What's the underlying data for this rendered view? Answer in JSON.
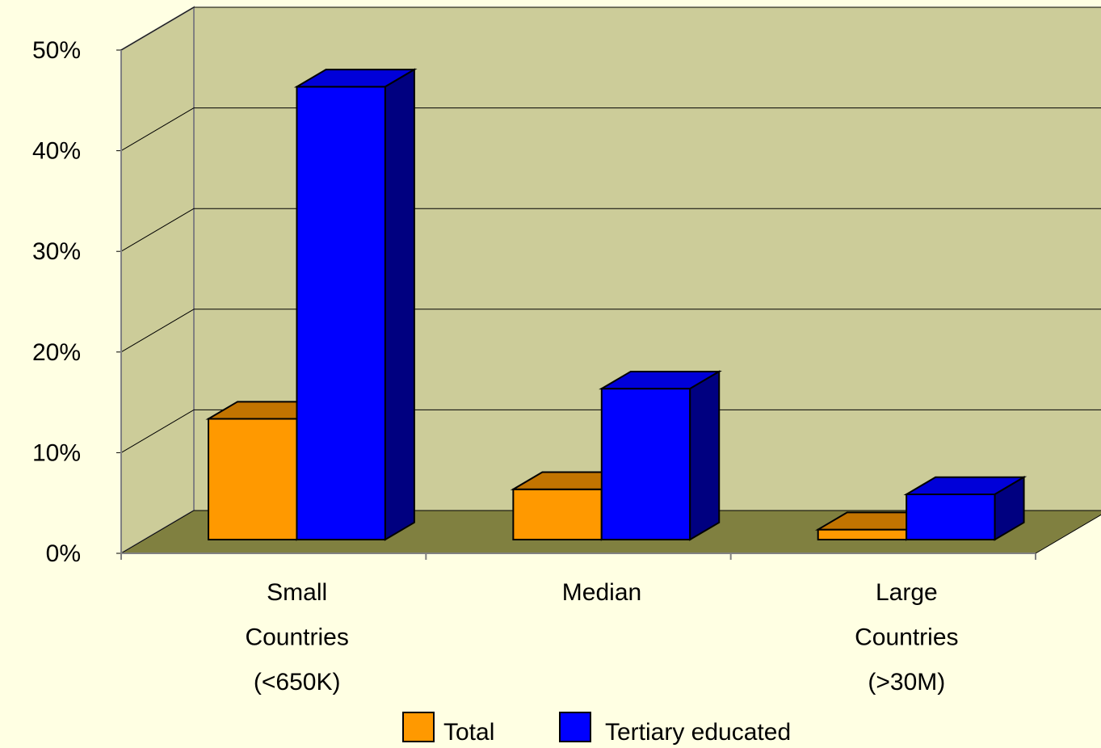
{
  "chart_data": {
    "type": "bar3d",
    "categories": [
      "Small Countries (<650K)",
      "Median",
      "Large Countries (>30M)"
    ],
    "series": [
      {
        "name": "Total",
        "color": "#ff9900",
        "values": [
          12,
          5,
          1
        ]
      },
      {
        "name": "Tertiary educated",
        "color": "#0000ff",
        "values": [
          45,
          15,
          4.5
        ]
      }
    ],
    "ylim": [
      0,
      50
    ],
    "yticks": [
      {
        "value": 0,
        "label": "0%"
      },
      {
        "value": 10,
        "label": "10%"
      },
      {
        "value": 20,
        "label": "20%"
      },
      {
        "value": 30,
        "label": "30%"
      },
      {
        "value": 40,
        "label": "40%"
      },
      {
        "value": 50,
        "label": "50%"
      }
    ],
    "grid": true,
    "legend": "bottom"
  }
}
